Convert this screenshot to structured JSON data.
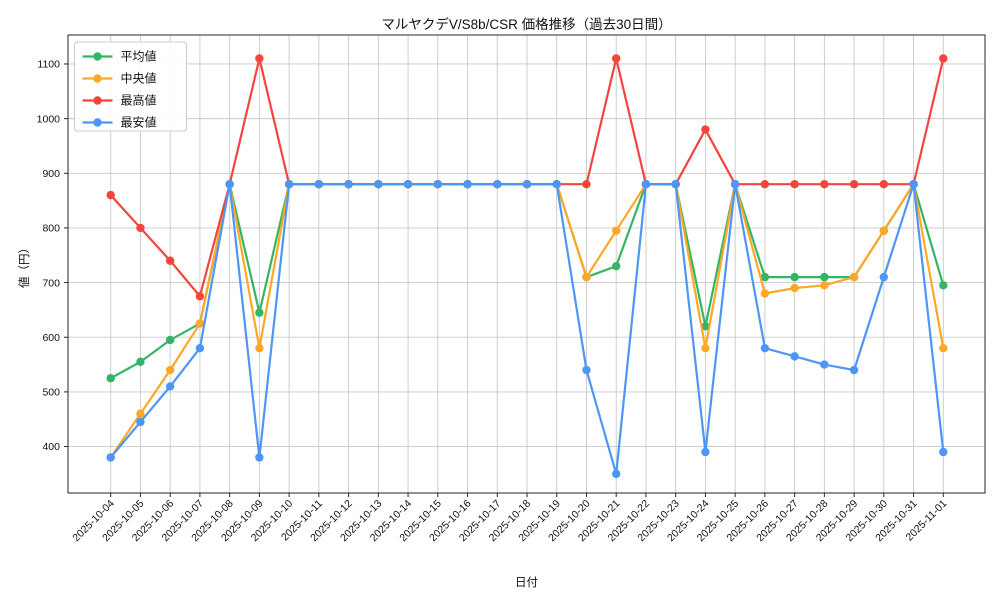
{
  "title": "マルヤクデV/S8b/CSR 価格推移（過去30日間）",
  "chart_data": {
    "type": "line",
    "xlabel": "日付",
    "ylabel": "値（円）",
    "x": [
      "2025-10-04",
      "2025-10-05",
      "2025-10-06",
      "2025-10-07",
      "2025-10-08",
      "2025-10-09",
      "2025-10-10",
      "2025-10-11",
      "2025-10-12",
      "2025-10-13",
      "2025-10-14",
      "2025-10-15",
      "2025-10-16",
      "2025-10-17",
      "2025-10-18",
      "2025-10-19",
      "2025-10-20",
      "2025-10-21",
      "2025-10-22",
      "2025-10-23",
      "2025-10-24",
      "2025-10-25",
      "2025-10-26",
      "2025-10-27",
      "2025-10-28",
      "2025-10-29",
      "2025-10-30",
      "2025-10-31",
      "2025-11-01"
    ],
    "series": [
      {
        "name": "平均値",
        "color": "#34b566",
        "values": [
          525,
          555,
          595,
          625,
          880,
          645,
          880,
          880,
          880,
          880,
          880,
          880,
          880,
          880,
          880,
          880,
          710,
          730,
          880,
          880,
          620,
          880,
          710,
          710,
          710,
          710,
          795,
          880,
          695
        ]
      },
      {
        "name": "中央値",
        "color": "#ffa726",
        "values": [
          380,
          460,
          540,
          625,
          880,
          580,
          880,
          880,
          880,
          880,
          880,
          880,
          880,
          880,
          880,
          880,
          710,
          795,
          880,
          880,
          580,
          880,
          680,
          690,
          695,
          710,
          795,
          880,
          580
        ]
      },
      {
        "name": "最高値",
        "color": "#f4453c",
        "values": [
          860,
          800,
          740,
          675,
          880,
          1110,
          880,
          880,
          880,
          880,
          880,
          880,
          880,
          880,
          880,
          880,
          880,
          1110,
          880,
          880,
          980,
          880,
          880,
          880,
          880,
          880,
          880,
          880,
          1110
        ]
      },
      {
        "name": "最安値",
        "color": "#4d96f5",
        "values": [
          380,
          445,
          510,
          580,
          880,
          380,
          880,
          880,
          880,
          880,
          880,
          880,
          880,
          880,
          880,
          880,
          540,
          350,
          880,
          880,
          390,
          880,
          580,
          565,
          550,
          540,
          710,
          880,
          390
        ]
      }
    ],
    "yticks": [
      400,
      500,
      600,
      700,
      800,
      900,
      1000,
      1100
    ],
    "ylim": [
      315,
      1153
    ],
    "grid": true,
    "grid_color": "#c9c9c9",
    "axis_color": "#262626",
    "background": "#ffffff",
    "legend_position": "upper-left"
  }
}
